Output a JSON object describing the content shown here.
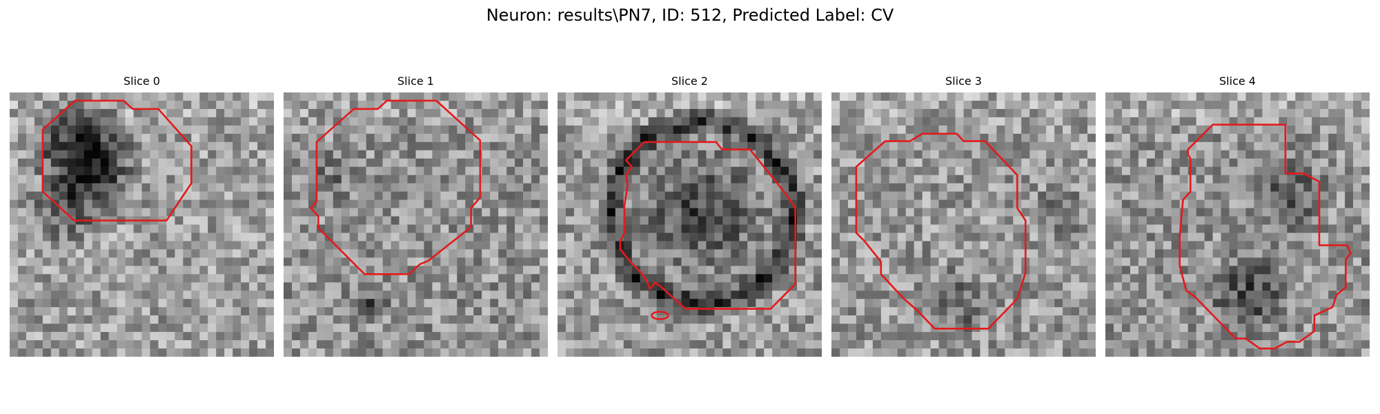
{
  "figure": {
    "title": "Neuron: results\\PN7, ID: 512, Predicted Label: CV",
    "contour_color": "#e31a1c",
    "colormap": "gray",
    "grid_size": 32
  },
  "panels": [
    {
      "title": "Slice 0",
      "seed": 11,
      "contour_name": "contour-slice-0"
    },
    {
      "title": "Slice 1",
      "seed": 23,
      "contour_name": "contour-slice-1"
    },
    {
      "title": "Slice 2",
      "seed": 37,
      "contour_name": "contour-slice-2"
    },
    {
      "title": "Slice 3",
      "seed": 41,
      "contour_name": "contour-slice-3"
    },
    {
      "title": "Slice 4",
      "seed": 53,
      "contour_name": "contour-slice-4"
    }
  ]
}
